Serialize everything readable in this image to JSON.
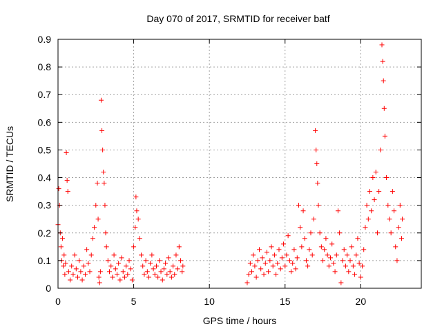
{
  "chart_data": {
    "type": "scatter",
    "title": "Day 070 of 2017, SRMTID for receiver batf",
    "xlabel": "GPS time / hours",
    "ylabel": "SRMTID / TECUs",
    "xlim": [
      0,
      24
    ],
    "ylim": [
      0,
      0.9
    ],
    "grid": true,
    "marker": "+",
    "color": "#ff0000",
    "xticks": [
      0,
      5,
      10,
      15,
      20
    ],
    "xtick_labels": [
      "0",
      "5",
      "10",
      "15",
      "20"
    ],
    "yticks": [
      0,
      0.1,
      0.2,
      0.3,
      0.4,
      0.5,
      0.6,
      0.7,
      0.8,
      0.9
    ],
    "ytick_labels": [
      "0",
      "0.1",
      "0.2",
      "0.3",
      "0.4",
      "0.5",
      "0.6",
      "0.7",
      "0.8",
      "0.9"
    ],
    "series": [
      {
        "name": "SRMTID",
        "points": [
          [
            0.0,
            0.23
          ],
          [
            0.05,
            0.36
          ],
          [
            0.1,
            0.3
          ],
          [
            0.15,
            0.2
          ],
          [
            0.2,
            0.15
          ],
          [
            0.25,
            0.1
          ],
          [
            0.3,
            0.18
          ],
          [
            0.35,
            0.08
          ],
          [
            0.4,
            0.12
          ],
          [
            0.45,
            0.05
          ],
          [
            0.5,
            0.09
          ],
          [
            0.55,
            0.49
          ],
          [
            0.6,
            0.39
          ],
          [
            0.65,
            0.35
          ],
          [
            0.7,
            0.06
          ],
          [
            0.8,
            0.03
          ],
          [
            0.9,
            0.08
          ],
          [
            1.0,
            0.05
          ],
          [
            1.1,
            0.12
          ],
          [
            1.2,
            0.07
          ],
          [
            1.3,
            0.04
          ],
          [
            1.4,
            0.1
          ],
          [
            1.5,
            0.06
          ],
          [
            1.6,
            0.03
          ],
          [
            1.7,
            0.08
          ],
          [
            1.8,
            0.05
          ],
          [
            1.9,
            0.14
          ],
          [
            2.0,
            0.09
          ],
          [
            2.1,
            0.06
          ],
          [
            2.2,
            0.12
          ],
          [
            2.3,
            0.18
          ],
          [
            2.4,
            0.22
          ],
          [
            2.5,
            0.3
          ],
          [
            2.6,
            0.38
          ],
          [
            2.65,
            0.25
          ],
          [
            2.7,
            0.04
          ],
          [
            2.75,
            0.02
          ],
          [
            2.8,
            0.06
          ],
          [
            2.85,
            0.68
          ],
          [
            2.9,
            0.57
          ],
          [
            2.95,
            0.5
          ],
          [
            3.0,
            0.42
          ],
          [
            3.05,
            0.38
          ],
          [
            3.1,
            0.3
          ],
          [
            3.15,
            0.2
          ],
          [
            3.2,
            0.15
          ],
          [
            3.3,
            0.1
          ],
          [
            3.4,
            0.06
          ],
          [
            3.5,
            0.08
          ],
          [
            3.6,
            0.04
          ],
          [
            3.7,
            0.12
          ],
          [
            3.8,
            0.07
          ],
          [
            3.9,
            0.05
          ],
          [
            4.0,
            0.09
          ],
          [
            4.1,
            0.03
          ],
          [
            4.2,
            0.11
          ],
          [
            4.3,
            0.06
          ],
          [
            4.4,
            0.04
          ],
          [
            4.5,
            0.08
          ],
          [
            4.6,
            0.05
          ],
          [
            4.7,
            0.1
          ],
          [
            4.8,
            0.07
          ],
          [
            4.9,
            0.03
          ],
          [
            5.0,
            0.15
          ],
          [
            5.1,
            0.22
          ],
          [
            5.15,
            0.33
          ],
          [
            5.2,
            0.28
          ],
          [
            5.3,
            0.25
          ],
          [
            5.4,
            0.18
          ],
          [
            5.5,
            0.12
          ],
          [
            5.6,
            0.08
          ],
          [
            5.7,
            0.05
          ],
          [
            5.8,
            0.1
          ],
          [
            5.9,
            0.06
          ],
          [
            6.0,
            0.04
          ],
          [
            6.1,
            0.09
          ],
          [
            6.2,
            0.12
          ],
          [
            6.3,
            0.07
          ],
          [
            6.4,
            0.05
          ],
          [
            6.5,
            0.08
          ],
          [
            6.6,
            0.04
          ],
          [
            6.7,
            0.1
          ],
          [
            6.8,
            0.06
          ],
          [
            6.9,
            0.03
          ],
          [
            7.0,
            0.07
          ],
          [
            7.1,
            0.09
          ],
          [
            7.2,
            0.05
          ],
          [
            7.3,
            0.11
          ],
          [
            7.4,
            0.06
          ],
          [
            7.5,
            0.04
          ],
          [
            7.6,
            0.08
          ],
          [
            7.7,
            0.05
          ],
          [
            7.8,
            0.12
          ],
          [
            7.9,
            0.07
          ],
          [
            8.0,
            0.15
          ],
          [
            8.1,
            0.1
          ],
          [
            8.2,
            0.06
          ],
          [
            8.25,
            0.08
          ],
          [
            12.5,
            0.02
          ],
          [
            12.6,
            0.05
          ],
          [
            12.7,
            0.09
          ],
          [
            12.8,
            0.06
          ],
          [
            12.9,
            0.12
          ],
          [
            13.0,
            0.08
          ],
          [
            13.1,
            0.04
          ],
          [
            13.2,
            0.1
          ],
          [
            13.3,
            0.14
          ],
          [
            13.4,
            0.07
          ],
          [
            13.5,
            0.11
          ],
          [
            13.6,
            0.05
          ],
          [
            13.7,
            0.09
          ],
          [
            13.8,
            0.13
          ],
          [
            13.9,
            0.06
          ],
          [
            14.0,
            0.1
          ],
          [
            14.1,
            0.15
          ],
          [
            14.2,
            0.08
          ],
          [
            14.3,
            0.12
          ],
          [
            14.4,
            0.05
          ],
          [
            14.5,
            0.09
          ],
          [
            14.6,
            0.14
          ],
          [
            14.7,
            0.07
          ],
          [
            14.8,
            0.11
          ],
          [
            14.9,
            0.16
          ],
          [
            15.0,
            0.08
          ],
          [
            15.1,
            0.12
          ],
          [
            15.2,
            0.19
          ],
          [
            15.3,
            0.1
          ],
          [
            15.4,
            0.06
          ],
          [
            15.5,
            0.09
          ],
          [
            15.6,
            0.14
          ],
          [
            15.7,
            0.07
          ],
          [
            15.8,
            0.11
          ],
          [
            15.9,
            0.3
          ],
          [
            16.0,
            0.22
          ],
          [
            16.1,
            0.15
          ],
          [
            16.2,
            0.28
          ],
          [
            16.3,
            0.18
          ],
          [
            16.4,
            0.1
          ],
          [
            16.5,
            0.08
          ],
          [
            16.6,
            0.14
          ],
          [
            16.7,
            0.2
          ],
          [
            16.8,
            0.12
          ],
          [
            16.9,
            0.25
          ],
          [
            17.0,
            0.57
          ],
          [
            17.05,
            0.5
          ],
          [
            17.1,
            0.45
          ],
          [
            17.15,
            0.38
          ],
          [
            17.2,
            0.3
          ],
          [
            17.3,
            0.2
          ],
          [
            17.4,
            0.15
          ],
          [
            17.5,
            0.1
          ],
          [
            17.6,
            0.14
          ],
          [
            17.7,
            0.18
          ],
          [
            17.8,
            0.12
          ],
          [
            17.9,
            0.08
          ],
          [
            18.0,
            0.11
          ],
          [
            18.1,
            0.16
          ],
          [
            18.2,
            0.09
          ],
          [
            18.3,
            0.06
          ],
          [
            18.4,
            0.12
          ],
          [
            18.5,
            0.28
          ],
          [
            18.6,
            0.2
          ],
          [
            18.7,
            0.02
          ],
          [
            18.8,
            0.1
          ],
          [
            18.9,
            0.14
          ],
          [
            19.0,
            0.08
          ],
          [
            19.1,
            0.12
          ],
          [
            19.2,
            0.06
          ],
          [
            19.3,
            0.1
          ],
          [
            19.4,
            0.15
          ],
          [
            19.5,
            0.08
          ],
          [
            19.6,
            0.05
          ],
          [
            19.7,
            0.12
          ],
          [
            19.8,
            0.18
          ],
          [
            19.9,
            0.09
          ],
          [
            20.0,
            0.04
          ],
          [
            20.1,
            0.08
          ],
          [
            20.2,
            0.14
          ],
          [
            20.3,
            0.22
          ],
          [
            20.4,
            0.3
          ],
          [
            20.5,
            0.25
          ],
          [
            20.6,
            0.35
          ],
          [
            20.7,
            0.28
          ],
          [
            20.8,
            0.4
          ],
          [
            20.9,
            0.32
          ],
          [
            21.0,
            0.42
          ],
          [
            21.1,
            0.2
          ],
          [
            21.2,
            0.35
          ],
          [
            21.3,
            0.5
          ],
          [
            21.4,
            0.88
          ],
          [
            21.45,
            0.82
          ],
          [
            21.5,
            0.75
          ],
          [
            21.55,
            0.65
          ],
          [
            21.6,
            0.55
          ],
          [
            21.7,
            0.4
          ],
          [
            21.8,
            0.3
          ],
          [
            21.9,
            0.25
          ],
          [
            22.0,
            0.2
          ],
          [
            22.1,
            0.35
          ],
          [
            22.2,
            0.28
          ],
          [
            22.3,
            0.15
          ],
          [
            22.4,
            0.1
          ],
          [
            22.5,
            0.22
          ],
          [
            22.6,
            0.3
          ],
          [
            22.7,
            0.18
          ],
          [
            22.75,
            0.25
          ]
        ]
      }
    ]
  }
}
